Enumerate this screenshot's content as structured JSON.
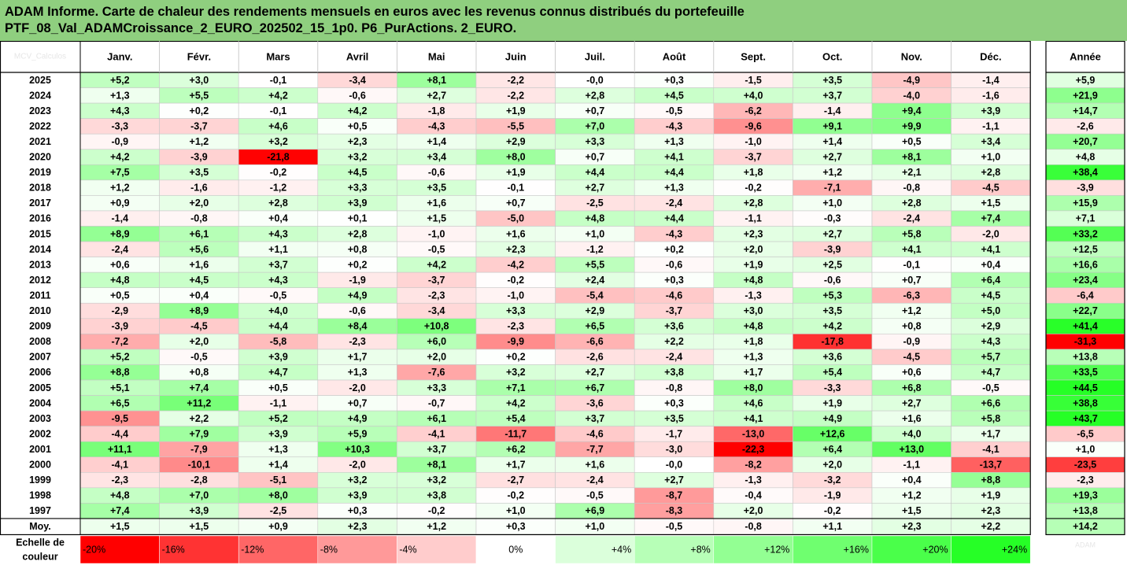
{
  "title": {
    "line1": "ADAM Informe. Carte de chaleur des rendements mensuels en euros avec les revenus connus distribués du portefeuille",
    "line2": "PTF_08_Val_ADAMCroissance_2_EURO_202502_15_1p0. P6_PurActions. 2_EURO."
  },
  "colors": {
    "positive_max": "#00ff00",
    "negative_max": "#ff0000",
    "neutral": "#ffffff",
    "title_bg": "#8fcf7f"
  },
  "chart_data": {
    "type": "heatmap",
    "corner_label": "MCV_Calculos",
    "columns": [
      "Janv.",
      "Févr.",
      "Mars",
      "Avril",
      "Mai",
      "Juin",
      "Juil.",
      "Août",
      "Sept.",
      "Oct.",
      "Nov.",
      "Déc."
    ],
    "year_label": "Année",
    "rows": [
      {
        "label": "2025",
        "values": [
          "+5,2",
          "+3,0",
          "-0,1",
          "-3,4",
          "+8,1",
          "-2,2",
          "-0,0",
          "+0,3",
          "-1,5",
          "+3,5",
          "-4,9",
          "-1,4"
        ],
        "annual": "+5,9"
      },
      {
        "label": "2024",
        "values": [
          "+1,3",
          "+5,5",
          "+4,2",
          "-0,6",
          "+2,7",
          "-2,2",
          "+2,8",
          "+4,5",
          "+4,0",
          "+3,7",
          "-4,0",
          "-1,6"
        ],
        "annual": "+21,9"
      },
      {
        "label": "2023",
        "values": [
          "+4,3",
          "+0,2",
          "-0,1",
          "+4,2",
          "-1,8",
          "+1,9",
          "+0,7",
          "-0,5",
          "-6,2",
          "-1,4",
          "+9,4",
          "+3,9"
        ],
        "annual": "+14,7"
      },
      {
        "label": "2022",
        "values": [
          "-3,3",
          "-3,7",
          "+4,6",
          "+0,5",
          "-4,3",
          "-5,5",
          "+7,0",
          "-4,3",
          "-9,6",
          "+9,1",
          "+9,9",
          "-1,1"
        ],
        "annual": "-2,6"
      },
      {
        "label": "2021",
        "values": [
          "-0,9",
          "+1,2",
          "+3,2",
          "+2,3",
          "+1,4",
          "+2,9",
          "+3,3",
          "+1,3",
          "-1,0",
          "+1,4",
          "+0,5",
          "+3,4"
        ],
        "annual": "+20,7"
      },
      {
        "label": "2020",
        "values": [
          "+4,2",
          "-3,9",
          "-21,8",
          "+3,2",
          "+3,4",
          "+8,0",
          "+0,7",
          "+4,1",
          "-3,7",
          "+2,7",
          "+8,1",
          "+1,0"
        ],
        "annual": "+4,8"
      },
      {
        "label": "2019",
        "values": [
          "+7,5",
          "+3,5",
          "-0,2",
          "+4,5",
          "-0,6",
          "+1,9",
          "+4,4",
          "+4,4",
          "+1,8",
          "+1,2",
          "+2,1",
          "+2,8"
        ],
        "annual": "+38,4"
      },
      {
        "label": "2018",
        "values": [
          "+1,2",
          "-1,6",
          "-1,2",
          "+3,3",
          "+3,5",
          "-0,1",
          "+2,7",
          "+1,3",
          "-0,2",
          "-7,1",
          "-0,8",
          "-4,5"
        ],
        "annual": "-3,9"
      },
      {
        "label": "2017",
        "values": [
          "+0,9",
          "+2,0",
          "+2,8",
          "+3,9",
          "+1,6",
          "+0,7",
          "-2,5",
          "-2,4",
          "+2,8",
          "+1,0",
          "+2,8",
          "+1,5"
        ],
        "annual": "+15,9"
      },
      {
        "label": "2016",
        "values": [
          "-1,4",
          "-0,8",
          "+0,4",
          "+0,1",
          "+1,5",
          "-5,0",
          "+4,8",
          "+4,4",
          "-1,1",
          "-0,3",
          "-2,4",
          "+7,4"
        ],
        "annual": "+7,1"
      },
      {
        "label": "2015",
        "values": [
          "+8,9",
          "+6,1",
          "+4,3",
          "+2,8",
          "-1,0",
          "+1,6",
          "+1,0",
          "-4,3",
          "+2,3",
          "+2,7",
          "+5,8",
          "-2,0"
        ],
        "annual": "+33,2"
      },
      {
        "label": "2014",
        "values": [
          "-2,4",
          "+5,6",
          "+1,1",
          "+0,8",
          "-0,5",
          "+2,3",
          "-1,2",
          "+0,2",
          "+2,0",
          "-3,9",
          "+4,1",
          "+4,1"
        ],
        "annual": "+12,5"
      },
      {
        "label": "2013",
        "values": [
          "+0,6",
          "+1,6",
          "+3,7",
          "+0,2",
          "+4,2",
          "-4,2",
          "+5,5",
          "-0,6",
          "+1,9",
          "+2,5",
          "-0,1",
          "+0,4"
        ],
        "annual": "+16,6"
      },
      {
        "label": "2012",
        "values": [
          "+4,8",
          "+4,5",
          "+4,3",
          "-1,9",
          "-3,7",
          "-0,2",
          "+2,4",
          "+0,3",
          "+4,8",
          "-0,6",
          "+0,7",
          "+6,4"
        ],
        "annual": "+23,4"
      },
      {
        "label": "2011",
        "values": [
          "+0,5",
          "+0,4",
          "-0,5",
          "+4,9",
          "-2,3",
          "-1,0",
          "-5,4",
          "-4,6",
          "-1,3",
          "+5,3",
          "-6,3",
          "+4,5"
        ],
        "annual": "-6,4"
      },
      {
        "label": "2010",
        "values": [
          "-2,9",
          "+8,9",
          "+4,0",
          "-0,6",
          "-3,4",
          "+3,3",
          "+2,9",
          "-3,7",
          "+3,0",
          "+3,5",
          "+1,2",
          "+5,0"
        ],
        "annual": "+22,7"
      },
      {
        "label": "2009",
        "values": [
          "-3,9",
          "-4,5",
          "+4,4",
          "+8,4",
          "+10,8",
          "-2,3",
          "+6,5",
          "+3,6",
          "+4,8",
          "+4,2",
          "+0,8",
          "+2,9"
        ],
        "annual": "+41,4"
      },
      {
        "label": "2008",
        "values": [
          "-7,2",
          "+2,0",
          "-5,8",
          "-2,3",
          "+6,0",
          "-9,9",
          "-6,6",
          "+2,2",
          "+1,8",
          "-17,8",
          "-0,9",
          "+4,3"
        ],
        "annual": "-31,3"
      },
      {
        "label": "2007",
        "values": [
          "+5,2",
          "-0,5",
          "+3,9",
          "+1,7",
          "+2,0",
          "+0,2",
          "-2,6",
          "-2,4",
          "+1,3",
          "+3,6",
          "-4,5",
          "+5,7"
        ],
        "annual": "+13,8"
      },
      {
        "label": "2006",
        "values": [
          "+8,8",
          "+0,8",
          "+4,7",
          "+1,3",
          "-7,6",
          "+3,2",
          "+2,7",
          "+3,8",
          "+1,7",
          "+5,4",
          "+0,6",
          "+4,7"
        ],
        "annual": "+33,5"
      },
      {
        "label": "2005",
        "values": [
          "+5,1",
          "+7,4",
          "+0,5",
          "-2,0",
          "+3,3",
          "+7,1",
          "+6,7",
          "-0,8",
          "+8,0",
          "-3,3",
          "+6,8",
          "-0,5"
        ],
        "annual": "+44,5"
      },
      {
        "label": "2004",
        "values": [
          "+6,5",
          "+11,2",
          "-1,1",
          "+0,7",
          "-0,7",
          "+4,2",
          "-3,6",
          "+0,3",
          "+4,6",
          "+1,9",
          "+2,7",
          "+6,6"
        ],
        "annual": "+38,8"
      },
      {
        "label": "2003",
        "values": [
          "-9,5",
          "+2,2",
          "+5,2",
          "+4,9",
          "+6,1",
          "+5,4",
          "+3,7",
          "+3,5",
          "+4,1",
          "+4,9",
          "+1,6",
          "+5,8"
        ],
        "annual": "+43,7"
      },
      {
        "label": "2002",
        "values": [
          "-4,4",
          "+7,9",
          "+3,9",
          "+5,9",
          "-4,1",
          "-11,7",
          "-4,6",
          "-1,7",
          "-13,0",
          "+12,6",
          "+4,0",
          "+1,7"
        ],
        "annual": "-6,5"
      },
      {
        "label": "2001",
        "values": [
          "+11,1",
          "-7,9",
          "+1,3",
          "+10,3",
          "+3,7",
          "+6,2",
          "-7,7",
          "-3,0",
          "-22,3",
          "+6,4",
          "+13,0",
          "-4,1"
        ],
        "annual": "+1,0"
      },
      {
        "label": "2000",
        "values": [
          "-4,1",
          "-10,1",
          "+1,4",
          "-2,0",
          "+8,1",
          "+1,7",
          "+1,6",
          "-0,0",
          "-8,2",
          "+2,0",
          "-1,1",
          "-13,7"
        ],
        "annual": "-23,5"
      },
      {
        "label": "1999",
        "values": [
          "-2,3",
          "-2,8",
          "-5,1",
          "+3,2",
          "+3,2",
          "-2,7",
          "-2,4",
          "+2,7",
          "-1,3",
          "-3,2",
          "+0,4",
          "+8,8"
        ],
        "annual": "-2,3"
      },
      {
        "label": "1998",
        "values": [
          "+4,8",
          "+7,0",
          "+8,0",
          "+3,9",
          "+3,8",
          "-0,2",
          "-0,5",
          "-8,7",
          "-0,4",
          "-1,9",
          "+1,2",
          "+1,9"
        ],
        "annual": "+19,3"
      },
      {
        "label": "1997",
        "values": [
          "+7,4",
          "+3,9",
          "-2,5",
          "+0,3",
          "-0,2",
          "+1,0",
          "+6,9",
          "-8,3",
          "+2,0",
          "-0,2",
          "+1,5",
          "+2,3"
        ],
        "annual": "+13,8"
      }
    ],
    "average": {
      "label": "Moy.",
      "values": [
        "+1,5",
        "+1,5",
        "+0,9",
        "+2,3",
        "+1,2",
        "+0,3",
        "+1,0",
        "-0,5",
        "-0,8",
        "+1,1",
        "+2,3",
        "+2,2"
      ],
      "annual": "+14,2"
    },
    "color_scale": {
      "label_line1": "Echelle de",
      "label_line2": "couleur",
      "stops": [
        "-20%",
        "-16%",
        "-12%",
        "-8%",
        "-4%",
        "0%",
        "+4%",
        "+8%",
        "+12%",
        "+16%",
        "+20%",
        "+24%"
      ],
      "stop_values": [
        -20,
        -16,
        -12,
        -8,
        -4,
        0,
        4,
        8,
        12,
        16,
        20,
        24
      ],
      "watermark": "ADAM"
    }
  }
}
